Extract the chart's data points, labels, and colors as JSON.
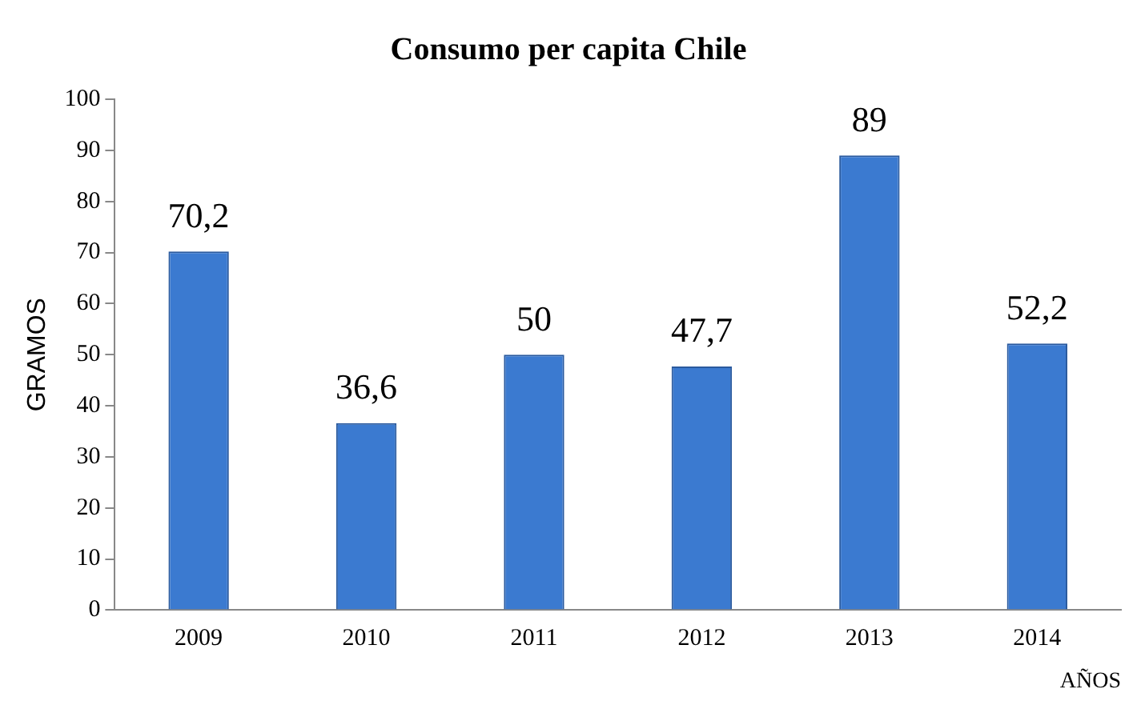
{
  "chart_data": {
    "type": "bar",
    "title": "Consumo per capita Chile",
    "xlabel": "AÑOS",
    "ylabel": "GRAMOS",
    "categories": [
      "2009",
      "2010",
      "2011",
      "2012",
      "2013",
      "2014"
    ],
    "values": [
      70.2,
      36.6,
      50,
      47.7,
      89,
      52.2
    ],
    "value_labels": [
      "70,2",
      "36,6",
      "50",
      "47,7",
      "89",
      "52,2"
    ],
    "color": "#3b7ad0",
    "ylim": [
      0,
      100
    ],
    "yticks": [
      0,
      10,
      20,
      30,
      40,
      50,
      60,
      70,
      80,
      90,
      100
    ],
    "grid": false,
    "legend": false
  }
}
